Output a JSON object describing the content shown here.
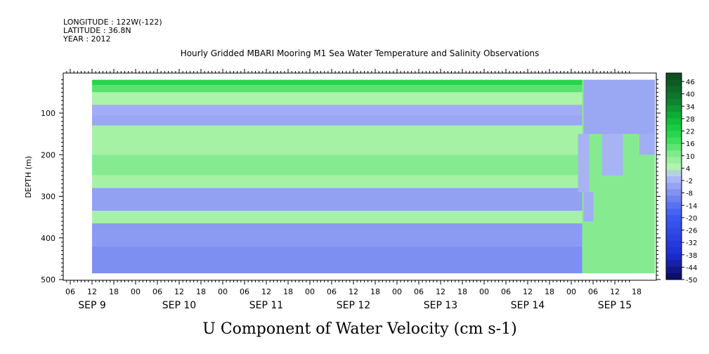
{
  "header": {
    "longitude": "LONGITUDE : 122W(-122)",
    "latitude": "LATITUDE : 36.8N",
    "year": "YEAR : 2012"
  },
  "chart_data": {
    "type": "heatmap",
    "title": "Hourly Gridded MBARI Mooring M1 Sea Water Temperature and Salinity Observations",
    "xlabel": "U Component of Water Velocity (cm s-1)",
    "ylabel": "DEPTH (m)",
    "ylim": [
      500,
      0
    ],
    "y_ticks": [
      100,
      200,
      300,
      400,
      500
    ],
    "x_hour_ticks": [
      "06",
      "12",
      "18",
      "00",
      "06",
      "12",
      "18",
      "00",
      "06",
      "12",
      "18",
      "00",
      "06",
      "12",
      "18",
      "00",
      "06",
      "12",
      "18",
      "00",
      "06",
      "12",
      "18",
      "00",
      "06",
      "12",
      "18"
    ],
    "x_day_labels": [
      "SEP  9",
      "SEP 10",
      "SEP 11",
      "SEP 12",
      "SEP 13",
      "SEP 14",
      "SEP 15"
    ],
    "colorbar": {
      "levels": [
        "46",
        "40",
        "34",
        "28",
        "22",
        "16",
        "10",
        "4",
        "-2",
        "-8",
        "-14",
        "-20",
        "-26",
        "-32",
        "-38",
        "-44",
        "-50"
      ],
      "min": -50,
      "max": 46,
      "palette_colors": [
        "#0a0a55",
        "#1d2fd6",
        "#3c5cf0",
        "#8f9ff2",
        "#b4bff6",
        "#a6f2a6",
        "#6ee57a",
        "#2fdc4e",
        "#10c83c",
        "#0f7a2e",
        "#0c4a1f"
      ]
    },
    "depth_bands_sep9_to_14": [
      {
        "from": 20,
        "to": 33,
        "value": 18
      },
      {
        "from": 33,
        "to": 50,
        "value": 12
      },
      {
        "from": 50,
        "to": 80,
        "value": 3
      },
      {
        "from": 80,
        "to": 105,
        "value": -5
      },
      {
        "from": 105,
        "to": 130,
        "value": -6
      },
      {
        "from": 130,
        "to": 200,
        "value": 4
      },
      {
        "from": 200,
        "to": 250,
        "value": 8
      },
      {
        "from": 250,
        "to": 280,
        "value": 4
      },
      {
        "from": 280,
        "to": 335,
        "value": -7
      },
      {
        "from": 335,
        "to": 365,
        "value": 4
      },
      {
        "from": 365,
        "to": 420,
        "value": -8
      },
      {
        "from": 420,
        "to": 485,
        "value": -10
      }
    ],
    "sep15_dominant_value": 8
  }
}
